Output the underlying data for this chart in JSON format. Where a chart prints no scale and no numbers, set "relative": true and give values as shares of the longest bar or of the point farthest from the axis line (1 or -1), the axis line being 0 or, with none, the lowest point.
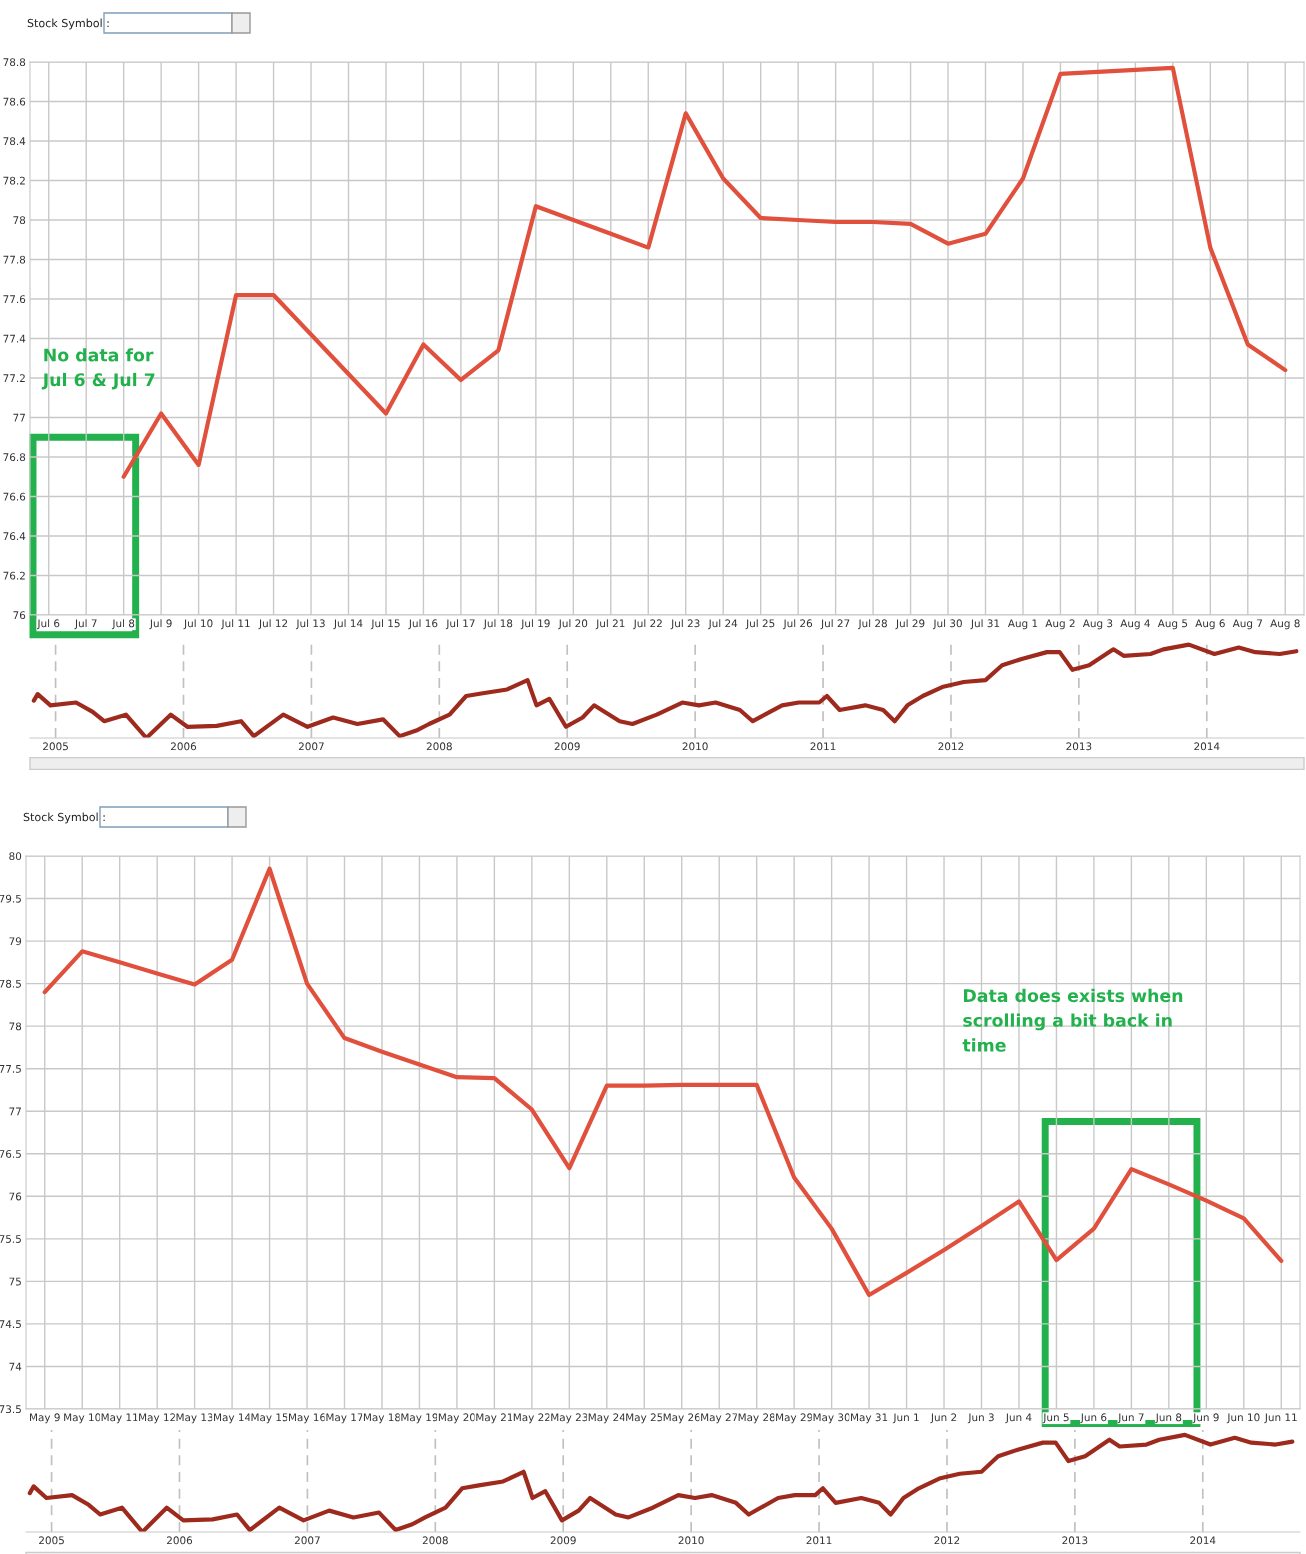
{
  "chart_data": [
    {
      "type": "line",
      "title": "Stock Symbol :",
      "categories": [
        "Jul 6",
        "Jul 7",
        "Jul 8",
        "Jul 9",
        "Jul 10",
        "Jul 11",
        "Jul 12",
        "Jul 13",
        "Jul 14",
        "Jul 15",
        "Jul 16",
        "Jul 17",
        "Jul 18",
        "Jul 19",
        "Jul 20",
        "Jul 21",
        "Jul 22",
        "Jul 23",
        "Jul 24",
        "Jul 25",
        "Jul 26",
        "Jul 27",
        "Jul 28",
        "Jul 29",
        "Jul 30",
        "Jul 31",
        "Aug 1",
        "Aug 2",
        "Aug 3",
        "Aug 4",
        "Aug 5",
        "Aug 6",
        "Aug 7",
        "Aug 8"
      ],
      "series": [
        {
          "color": "#e0503c",
          "values": [
            null,
            null,
            76.7,
            77.02,
            76.76,
            77.62,
            77.62,
            77.42,
            77.22,
            77.02,
            77.37,
            77.19,
            77.34,
            78.07,
            78.0,
            77.93,
            77.86,
            78.54,
            78.21,
            78.01,
            78.0,
            77.99,
            77.99,
            77.98,
            77.88,
            77.93,
            78.21,
            78.74,
            78.75,
            78.76,
            78.77,
            77.86,
            77.37,
            77.24
          ]
        }
      ],
      "ylim": [
        76,
        78.8
      ],
      "yticks": [
        76,
        76.2,
        76.4,
        76.6,
        76.8,
        77,
        77.2,
        77.4,
        77.6,
        77.8,
        78,
        78.2,
        78.4,
        78.6,
        78.8
      ],
      "grid": true,
      "annotations": [
        "No data for\nJul 6 & Jul 7"
      ]
    },
    {
      "type": "line",
      "relative": true,
      "x": [
        2004.83,
        2004.86,
        2004.96,
        2005.16,
        2005.29,
        2005.38,
        2005.55,
        2005.71,
        2005.9,
        2006.03,
        2006.26,
        2006.45,
        2006.55,
        2006.78,
        2006.97,
        2007.17,
        2007.36,
        2007.56,
        2007.69,
        2007.82,
        2007.92,
        2008.08,
        2008.21,
        2008.34,
        2008.53,
        2008.69,
        2008.76,
        2008.86,
        2008.99,
        2009.12,
        2009.21,
        2009.41,
        2009.51,
        2009.7,
        2009.9,
        2010.03,
        2010.16,
        2010.35,
        2010.45,
        2010.68,
        2010.81,
        2010.97,
        2011.03,
        2011.13,
        2011.33,
        2011.47,
        2011.56,
        2011.66,
        2011.78,
        2011.94,
        2012.1,
        2012.27,
        2012.4,
        2012.56,
        2012.75,
        2012.85,
        2012.95,
        2013.08,
        2013.27,
        2013.35,
        2013.56,
        2013.66,
        2013.86,
        2014.06,
        2014.25,
        2014.38,
        2014.57,
        2014.7
      ],
      "series": [
        {
          "color": "#9e2a1e",
          "values": [
            0.4,
            0.47,
            0.35,
            0.38,
            0.28,
            0.18,
            0.25,
            0,
            0.25,
            0.12,
            0.13,
            0.18,
            0.02,
            0.25,
            0.12,
            0.22,
            0.15,
            0.2,
            0.02,
            0.08,
            0.15,
            0.25,
            0.45,
            0.48,
            0.52,
            0.62,
            0.35,
            0.42,
            0.12,
            0.22,
            0.35,
            0.18,
            0.15,
            0.25,
            0.38,
            0.35,
            0.38,
            0.3,
            0.18,
            0.35,
            0.38,
            0.38,
            0.45,
            0.3,
            0.35,
            0.3,
            0.18,
            0.35,
            0.45,
            0.55,
            0.6,
            0.62,
            0.78,
            0.85,
            0.92,
            0.92,
            0.73,
            0.78,
            0.95,
            0.88,
            0.9,
            0.95,
            1,
            0.9,
            0.97,
            0.92,
            0.9,
            0.93
          ]
        }
      ],
      "xlim": [
        2004.8,
        2014.76
      ],
      "xticks": [
        2005,
        2006,
        2007,
        2008,
        2009,
        2010,
        2011,
        2012,
        2013,
        2014
      ],
      "grid": "x"
    },
    {
      "type": "line",
      "title": "Stock Symbol :",
      "categories": [
        "May 9",
        "May 10",
        "May 11",
        "May 12",
        "May 13",
        "May 14",
        "May 15",
        "May 16",
        "May 17",
        "May 18",
        "May 19",
        "May 20",
        "May 21",
        "May 22",
        "May 23",
        "May 24",
        "May 25",
        "May 26",
        "May 27",
        "May 28",
        "May 29",
        "May 30",
        "May 31",
        "Jun 1",
        "Jun 2",
        "Jun 3",
        "Jun 4",
        "Jun 5",
        "Jun 6",
        "Jun 7",
        "Jun 8",
        "Jun 9",
        "Jun 10",
        "Jun 11"
      ],
      "series": [
        {
          "color": "#e0503c",
          "values": [
            78.4,
            78.88,
            78.75,
            78.62,
            78.49,
            78.78,
            79.85,
            78.5,
            77.86,
            77.7,
            77.55,
            77.4,
            77.39,
            77.02,
            76.33,
            77.3,
            77.3,
            77.31,
            77.31,
            77.31,
            76.22,
            75.62,
            74.84,
            75.1,
            75.37,
            75.65,
            75.94,
            75.25,
            75.62,
            76.32,
            76.14,
            75.95,
            75.74,
            75.24
          ]
        }
      ],
      "ylim": [
        73.5,
        80
      ],
      "yticks": [
        73.5,
        74,
        74.5,
        75,
        75.5,
        76,
        76.5,
        77,
        77.5,
        78,
        78.5,
        79,
        79.5,
        80
      ],
      "grid": true,
      "annotations": [
        "Data does exists when\nscrolling a bit back in\ntime"
      ]
    },
    {
      "type": "line",
      "relative": true,
      "x": [
        2004.83,
        2004.86,
        2004.96,
        2005.16,
        2005.29,
        2005.38,
        2005.55,
        2005.71,
        2005.9,
        2006.03,
        2006.26,
        2006.45,
        2006.55,
        2006.78,
        2006.97,
        2007.17,
        2007.36,
        2007.56,
        2007.69,
        2007.82,
        2007.92,
        2008.08,
        2008.21,
        2008.34,
        2008.53,
        2008.69,
        2008.76,
        2008.86,
        2008.99,
        2009.12,
        2009.21,
        2009.41,
        2009.51,
        2009.7,
        2009.9,
        2010.03,
        2010.16,
        2010.35,
        2010.45,
        2010.68,
        2010.81,
        2010.97,
        2011.03,
        2011.13,
        2011.33,
        2011.47,
        2011.56,
        2011.66,
        2011.78,
        2011.94,
        2012.1,
        2012.27,
        2012.4,
        2012.56,
        2012.75,
        2012.85,
        2012.95,
        2013.08,
        2013.27,
        2013.35,
        2013.56,
        2013.66,
        2013.86,
        2014.06,
        2014.25,
        2014.38,
        2014.57,
        2014.7
      ],
      "series": [
        {
          "color": "#9e2a1e",
          "values": [
            0.4,
            0.47,
            0.35,
            0.38,
            0.28,
            0.18,
            0.25,
            0,
            0.25,
            0.12,
            0.13,
            0.18,
            0.02,
            0.25,
            0.12,
            0.22,
            0.15,
            0.2,
            0.02,
            0.08,
            0.15,
            0.25,
            0.45,
            0.48,
            0.52,
            0.62,
            0.35,
            0.42,
            0.12,
            0.22,
            0.35,
            0.18,
            0.15,
            0.25,
            0.38,
            0.35,
            0.38,
            0.3,
            0.18,
            0.35,
            0.38,
            0.38,
            0.45,
            0.3,
            0.35,
            0.3,
            0.18,
            0.35,
            0.45,
            0.55,
            0.6,
            0.62,
            0.78,
            0.85,
            0.92,
            0.92,
            0.73,
            0.78,
            0.95,
            0.88,
            0.9,
            0.95,
            1,
            0.9,
            0.97,
            0.92,
            0.9,
            0.93
          ]
        }
      ],
      "xlim": [
        2004.8,
        2014.76
      ],
      "xticks": [
        2005,
        2006,
        2007,
        2008,
        2009,
        2010,
        2011,
        2012,
        2013,
        2014
      ],
      "grid": "x"
    }
  ]
}
